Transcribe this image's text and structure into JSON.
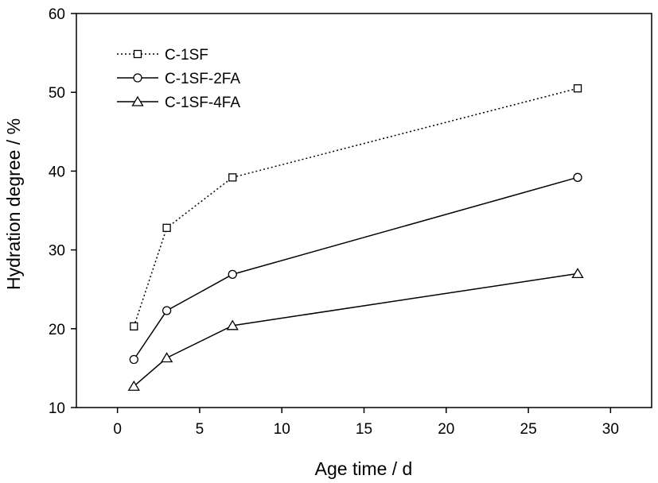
{
  "chart_data": {
    "type": "line",
    "title": "",
    "xlabel": "Age time / d",
    "ylabel": "Hydration degree / %",
    "xlim": [
      -2.5,
      32.5
    ],
    "ylim": [
      10,
      60
    ],
    "xticks": [
      0,
      5,
      10,
      15,
      20,
      25,
      30
    ],
    "yticks": [
      10,
      20,
      30,
      40,
      50,
      60
    ],
    "grid": false,
    "legend_position": "top-left",
    "x": [
      1,
      3,
      7,
      28
    ],
    "series": [
      {
        "name": "C-1SF",
        "values": [
          20.3,
          32.8,
          39.2,
          50.5
        ],
        "marker": "square",
        "line_style": "dotted",
        "color": "#000000"
      },
      {
        "name": "C-1SF-2FA",
        "values": [
          16.1,
          22.3,
          26.9,
          39.2
        ],
        "marker": "circle",
        "line_style": "solid",
        "color": "#000000"
      },
      {
        "name": "C-1SF-4FA",
        "values": [
          12.7,
          16.3,
          20.4,
          27.0
        ],
        "marker": "triangle",
        "line_style": "solid",
        "color": "#000000"
      }
    ]
  }
}
